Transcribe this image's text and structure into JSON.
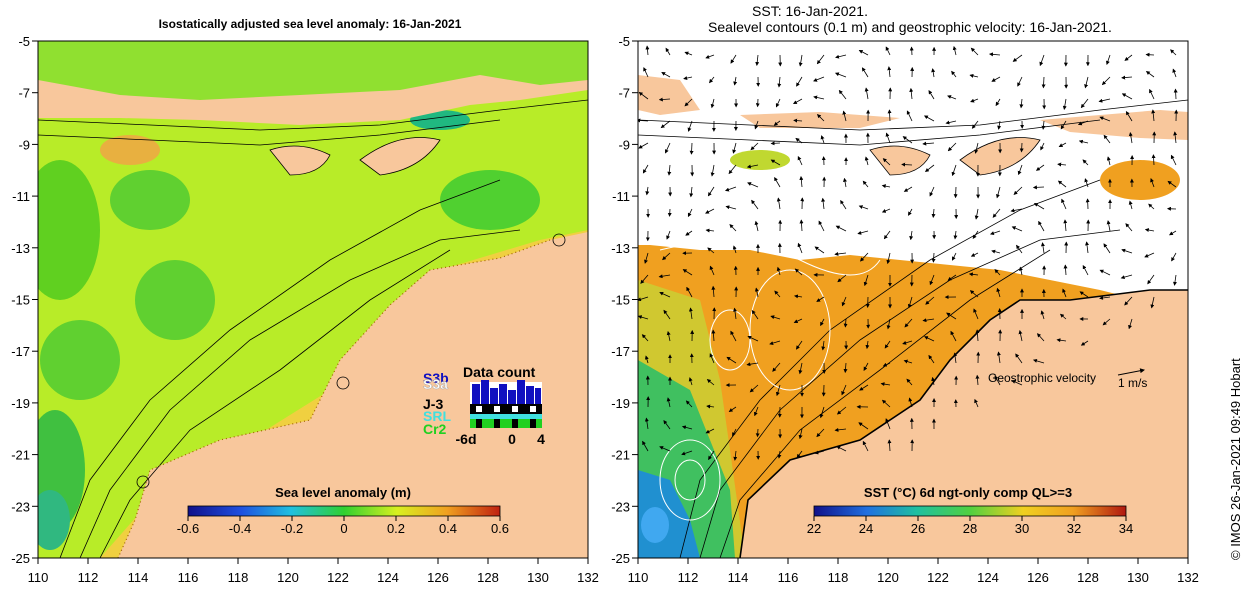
{
  "left_panel": {
    "title": "Isostatically adjusted sea level anomaly: 16-Jan-2021",
    "colorbar": {
      "title": "Sea level anomaly (m)",
      "ticks": [
        "-0.6",
        "-0.4",
        "-0.2",
        "0",
        "0.2",
        "0.4",
        "0.6"
      ]
    },
    "data_count": {
      "title": "Data count",
      "missions": [
        "S3b",
        "S3a",
        "J-3",
        "SRL",
        "Cr2"
      ],
      "mission_colors": [
        "#1010c0",
        "#ffffff",
        "#000000",
        "#40e0e0",
        "#20d020"
      ],
      "x_ticks": [
        "-6d",
        "0",
        "4"
      ]
    }
  },
  "right_panel": {
    "title_line1": "SST: 16-Jan-2021.",
    "title_line2": "Sealevel contours (0.1 m) and geostrophic velocity: 16-Jan-2021.",
    "velocity_legend": "Geostrophic velocity",
    "velocity_scale": "1 m/s",
    "colorbar": {
      "title": "SST (°C) 6d ngt-only comp QL>=3",
      "ticks": [
        "22",
        "24",
        "26",
        "28",
        "30",
        "32",
        "34"
      ]
    }
  },
  "axes": {
    "lat_ticks": [
      "-5",
      "-7",
      "-9",
      "-11",
      "-13",
      "-15",
      "-17",
      "-19",
      "-21",
      "-23",
      "-25"
    ],
    "lon_ticks": [
      "110",
      "112",
      "114",
      "116",
      "118",
      "120",
      "122",
      "124",
      "126",
      "128",
      "130",
      "132"
    ]
  },
  "credit": "©  IMOS 26-Jan-2021 09:49 Hobart",
  "colors": {
    "land": "#f8c79c",
    "sla_green": "#70e020",
    "sla_yellow": "#d8f020",
    "sst_orange": "#f0a020",
    "sst_blue": "#2070e0"
  }
}
